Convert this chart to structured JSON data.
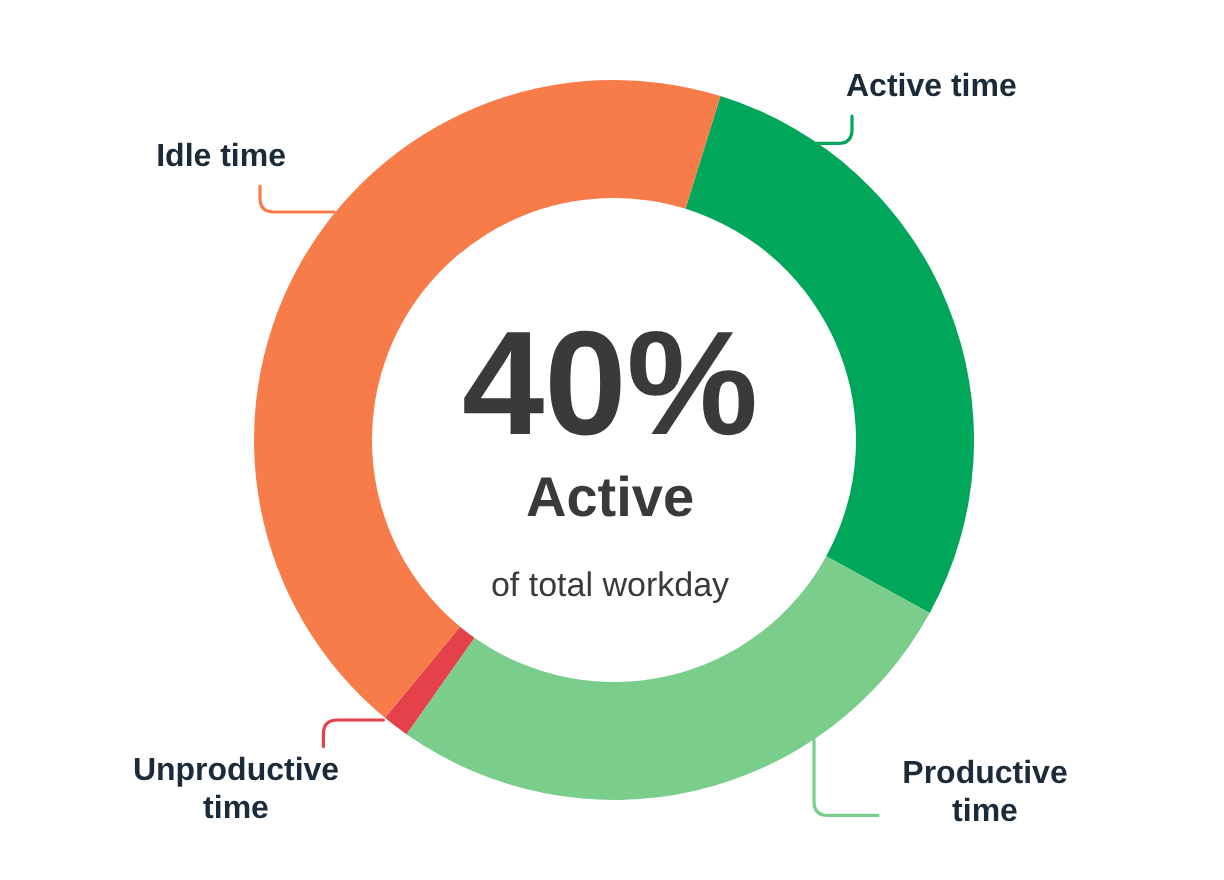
{
  "chart_data": {
    "type": "donut",
    "categories": [
      "Active time",
      "Productive time",
      "Unproductive time",
      "Idle time"
    ],
    "values": [
      28.2,
      26.8,
      1.2,
      43.8
    ],
    "colors": [
      "#00a65a",
      "#7bcd8c",
      "#e5414b",
      "#f77c4a"
    ],
    "annotations": [
      "40%",
      "Active",
      "of total workday"
    ]
  }
}
